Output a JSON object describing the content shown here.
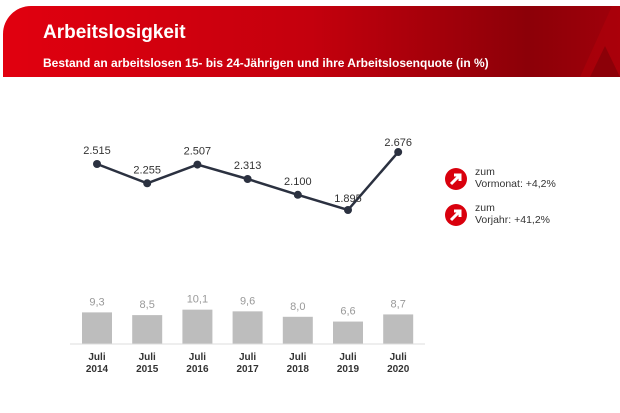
{
  "header": {
    "title": "Arbeitslosigkeit",
    "subtitle": "Bestand an arbeitslosen 15- bis 24-Jährigen und ihre Arbeitslosenquote (in %)"
  },
  "info": [
    {
      "icon": "arrow-up-right-icon",
      "line1": "zum",
      "line2": "Vormonat:  +4,2%"
    },
    {
      "icon": "arrow-up-right-icon",
      "line1": "zum",
      "line2": "Vorjahr:  +41,2%"
    }
  ],
  "colors": {
    "brand": "#e1000f",
    "line": "#2b3140",
    "bar": "#bdbdbd"
  },
  "chart_data": {
    "type": "line+bar",
    "categories": [
      "Juli\n2014",
      "Juli\n2015",
      "Juli\n2016",
      "Juli\n2017",
      "Juli\n2018",
      "Juli\n2019",
      "Juli\n2020"
    ],
    "category_lines": [
      [
        "Juli",
        "2014"
      ],
      [
        "Juli",
        "2015"
      ],
      [
        "Juli",
        "2016"
      ],
      [
        "Juli",
        "2017"
      ],
      [
        "Juli",
        "2018"
      ],
      [
        "Juli",
        "2019"
      ],
      [
        "Juli",
        "2020"
      ]
    ],
    "line_values": [
      2515,
      2255,
      2507,
      2313,
      2100,
      1895,
      2676
    ],
    "line_labels": [
      "2.515",
      "2.255",
      "2.507",
      "2.313",
      "2.100",
      "1.895",
      "2.676"
    ],
    "bar_values": [
      9.3,
      8.5,
      10.1,
      9.6,
      8.0,
      6.6,
      8.7
    ],
    "bar_labels": [
      "9,3",
      "8,5",
      "10,1",
      "9,6",
      "8,0",
      "6,6",
      "8,7"
    ]
  }
}
